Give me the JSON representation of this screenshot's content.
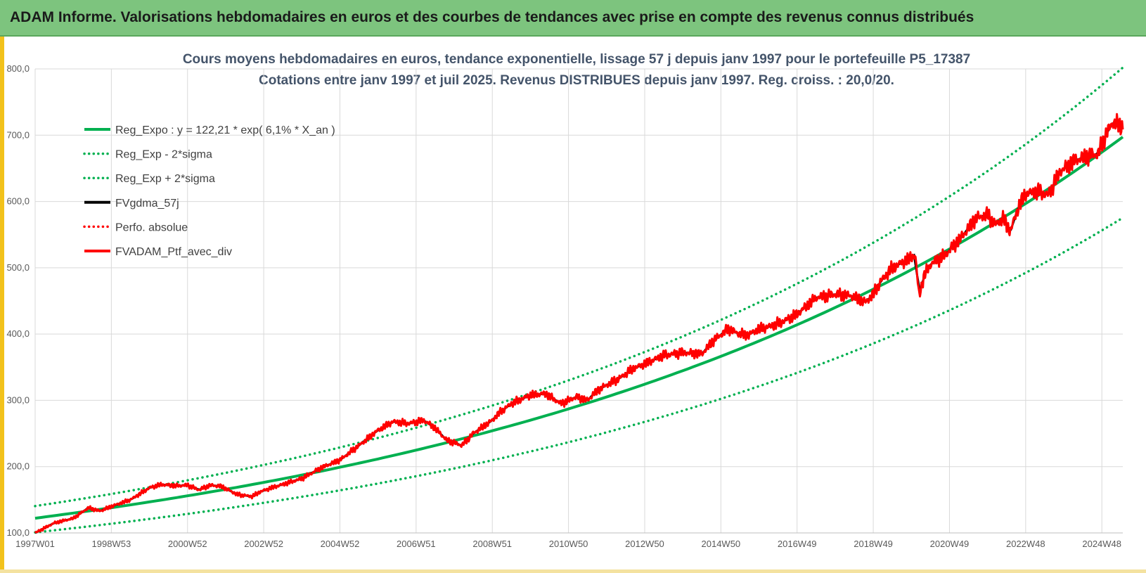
{
  "header": {
    "title": "ADAM Informe. Valorisations hebdomadaires en euros et des courbes de tendances avec prise en compte des revenus connus distribués"
  },
  "chart_data": {
    "type": "line",
    "title": "Cours moyens hebdomadaires  en euros, tendance exponentielle, lissage 57 j depuis janv 1997 pour le portefeuille P5_17387",
    "subtitle": "Cotations entre janv 1997 et juil 2025. Revenus DISTRIBUES depuis janv 1997. Reg. croiss. : 20,0/20.",
    "xlabel": "",
    "ylabel": "",
    "x_ticks": [
      "1997W01",
      "1998W53",
      "2000W52",
      "2002W52",
      "2004W52",
      "2006W51",
      "2008W51",
      "2010W50",
      "2012W50",
      "2014W50",
      "2016W49",
      "2018W49",
      "2020W49",
      "2022W48",
      "2024W48"
    ],
    "x_range_years": [
      1997.0,
      2025.55
    ],
    "ylim": [
      100,
      800
    ],
    "y_ticks": [
      "100,0",
      "200,0",
      "300,0",
      "400,0",
      "500,0",
      "600,0",
      "700,0",
      "800,0"
    ],
    "grid": true,
    "legend_position": "top-left",
    "regression": {
      "a": 122.21,
      "rate": 0.061,
      "sigma_band_factors": [
        0.825,
        1.15
      ]
    },
    "series": [
      {
        "name": "Reg_Expo : y = 122,21 * exp( 6,1% *  X_an )",
        "color": "#00b050",
        "style": "solid"
      },
      {
        "name": "Reg_Exp - 2*sigma",
        "color": "#00b050",
        "style": "dotted"
      },
      {
        "name": "Reg_Exp + 2*sigma",
        "color": "#00b050",
        "style": "dotted"
      },
      {
        "name": "FVgdma_57j",
        "color": "#000000",
        "style": "solid"
      },
      {
        "name": "Perfo. absolue",
        "color": "#ff0000",
        "style": "dotted"
      },
      {
        "name": "FVADAM_Ptf_avec_div",
        "color": "#ff0000",
        "style": "solid",
        "x": [
          1997.0,
          1997.5,
          1998.0,
          1998.4,
          1998.7,
          1999.0,
          1999.5,
          2000.0,
          2000.3,
          2000.7,
          2001.0,
          2001.3,
          2001.6,
          2001.9,
          2002.3,
          2002.7,
          2002.9,
          2003.2,
          2003.6,
          2004.0,
          2004.5,
          2005.0,
          2005.5,
          2006.0,
          2006.4,
          2006.8,
          2007.2,
          2007.5,
          2007.8,
          2008.2,
          2008.5,
          2008.8,
          2009.0,
          2009.2,
          2009.5,
          2010.0,
          2010.4,
          2010.8,
          2011.2,
          2011.5,
          2011.7,
          2011.9,
          2012.3,
          2012.7,
          2013.0,
          2013.5,
          2014.0,
          2014.5,
          2014.8,
          2015.2,
          2015.4,
          2015.7,
          2016.0,
          2016.2,
          2016.6,
          2017.0,
          2017.5,
          2018.0,
          2018.4,
          2018.8,
          2019.0,
          2019.2,
          2019.5,
          2019.9,
          2020.1,
          2020.2,
          2020.35,
          2020.5,
          2020.9,
          2021.3,
          2021.7,
          2022.0,
          2022.2,
          2022.4,
          2022.6,
          2022.8,
          2023.0,
          2023.3,
          2023.6,
          2023.9,
          2024.3,
          2024.6,
          2024.9,
          2025.1,
          2025.3,
          2025.55
        ],
        "values": [
          100,
          115,
          122,
          138,
          133,
          140,
          150,
          168,
          173,
          171,
          172,
          165,
          172,
          170,
          158,
          155,
          162,
          168,
          175,
          182,
          198,
          210,
          232,
          255,
          268,
          265,
          270,
          258,
          240,
          232,
          250,
          262,
          270,
          282,
          295,
          308,
          310,
          295,
          305,
          300,
          312,
          320,
          332,
          348,
          355,
          368,
          372,
          370,
          390,
          408,
          402,
          398,
          408,
          410,
          418,
          430,
          455,
          460,
          458,
          448,
          460,
          480,
          500,
          512,
          520,
          458,
          490,
          505,
          520,
          545,
          575,
          580,
          565,
          575,
          555,
          590,
          612,
          615,
          610,
          645,
          662,
          668,
          672,
          700,
          720,
          712
        ]
      }
    ]
  }
}
